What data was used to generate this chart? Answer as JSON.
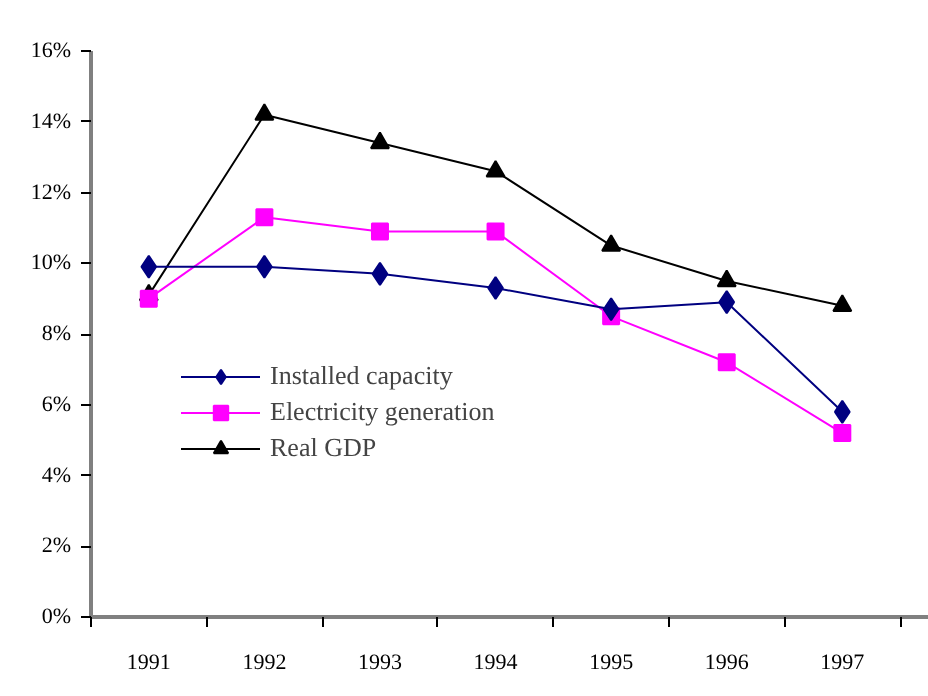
{
  "chart_data": {
    "type": "line",
    "categories": [
      "1991",
      "1992",
      "1993",
      "1994",
      "1995",
      "1996",
      "1997"
    ],
    "series": [
      {
        "name": "Installed capacity",
        "color": "#000080",
        "marker": "diamond",
        "values": [
          9.9,
          9.9,
          9.7,
          9.3,
          8.7,
          8.9,
          5.8
        ]
      },
      {
        "name": "Electricity generation",
        "color": "#ff00ff",
        "marker": "square",
        "values": [
          9.0,
          11.3,
          10.9,
          10.9,
          8.5,
          7.2,
          5.2
        ]
      },
      {
        "name": "Real GDP",
        "color": "#000000",
        "marker": "triangle",
        "values": [
          9.1,
          14.2,
          13.4,
          12.6,
          10.5,
          9.5,
          8.8
        ]
      }
    ],
    "ylim": [
      0,
      16
    ],
    "yticks": [
      {
        "value": 0,
        "label": "0%"
      },
      {
        "value": 2,
        "label": "2%"
      },
      {
        "value": 4,
        "label": "4%"
      },
      {
        "value": 6,
        "label": "6%"
      },
      {
        "value": 8,
        "label": "8%"
      },
      {
        "value": 10,
        "label": "10%"
      },
      {
        "value": 12,
        "label": "12%"
      },
      {
        "value": 14,
        "label": "14%"
      },
      {
        "value": 16,
        "label": "16%"
      }
    ],
    "grid": false,
    "legend": "center left",
    "line_style": "solid"
  }
}
